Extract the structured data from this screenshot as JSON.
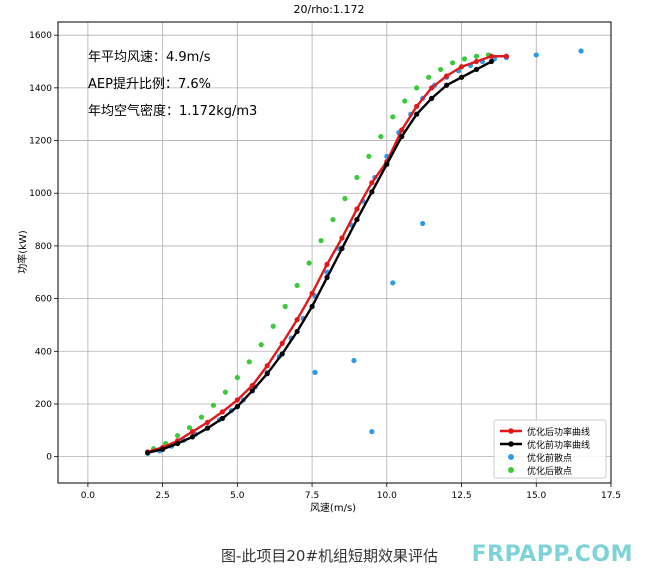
{
  "caption": "图-此项目20#机组短期效果评估",
  "watermark": "FRPAPP.COM",
  "chart_data": {
    "type": "line",
    "title": "20/rho:1.172",
    "xlabel": "风速(m/s)",
    "ylabel": "功率(kW)",
    "xlim": [
      -1.0,
      17.5
    ],
    "ylim": [
      -100,
      1650
    ],
    "xticks": [
      0.0,
      2.5,
      5.0,
      7.5,
      10.0,
      12.5,
      15.0,
      17.5
    ],
    "xtick_labels": [
      "0.0",
      "2.5",
      "5.0",
      "7.5",
      "10.0",
      "12.5",
      "15.0",
      "17.5"
    ],
    "yticks": [
      0,
      200,
      400,
      600,
      800,
      1000,
      1200,
      1400,
      1600
    ],
    "ytick_labels": [
      "0",
      "200",
      "400",
      "600",
      "800",
      "1000",
      "1200",
      "1400",
      "1600"
    ],
    "grid": true,
    "legend_position": "lower-right",
    "annotations": [
      "年平均风速：4.9m/s",
      "AEP提升比例：7.6%",
      "年均空气密度：1.172kg/m3"
    ],
    "series": [
      {
        "name": "优化后功率曲线",
        "kind": "line",
        "color": "#e0181c",
        "x": [
          2.0,
          2.5,
          3.0,
          3.5,
          4.0,
          4.5,
          5.0,
          5.5,
          6.0,
          6.5,
          7.0,
          7.5,
          8.0,
          8.5,
          9.0,
          9.5,
          10.0,
          10.5,
          11.0,
          11.5,
          12.0,
          12.5,
          13.0,
          13.5,
          14.0
        ],
        "values": [
          18,
          35,
          60,
          95,
          130,
          170,
          215,
          270,
          345,
          430,
          520,
          620,
          730,
          830,
          940,
          1040,
          1120,
          1240,
          1330,
          1400,
          1445,
          1480,
          1500,
          1520,
          1520
        ]
      },
      {
        "name": "优化前功率曲线",
        "kind": "line",
        "color": "#000000",
        "x": [
          2.0,
          2.5,
          3.0,
          3.5,
          4.0,
          4.5,
          5.0,
          5.5,
          6.0,
          6.5,
          7.0,
          7.5,
          8.0,
          8.5,
          9.0,
          9.5,
          10.0,
          10.5,
          11.0,
          11.5,
          12.0,
          12.5,
          13.0,
          13.5
        ],
        "values": [
          15,
          28,
          50,
          75,
          108,
          145,
          190,
          250,
          315,
          390,
          475,
          570,
          680,
          790,
          900,
          1005,
          1110,
          1215,
          1300,
          1360,
          1410,
          1440,
          1470,
          1500
        ]
      },
      {
        "name": "优化前散点",
        "kind": "scatter",
        "color": "#2f9be8",
        "x": [
          2.0,
          2.4,
          2.8,
          3.2,
          3.6,
          4.0,
          4.4,
          4.8,
          5.2,
          5.6,
          6.0,
          6.4,
          6.8,
          7.2,
          7.6,
          8.0,
          8.4,
          8.8,
          9.2,
          9.6,
          10.0,
          10.4,
          10.8,
          11.2,
          11.6,
          12.0,
          12.4,
          12.8,
          13.2,
          13.6,
          14.0,
          15.0,
          16.5,
          9.5,
          8.9,
          10.2,
          11.2,
          7.6
        ],
        "values": [
          12,
          22,
          40,
          62,
          85,
          110,
          140,
          175,
          215,
          265,
          320,
          380,
          450,
          525,
          610,
          700,
          790,
          880,
          970,
          1060,
          1140,
          1230,
          1300,
          1360,
          1410,
          1440,
          1465,
          1485,
          1500,
          1510,
          1515,
          1525,
          1540,
          95,
          365,
          660,
          885,
          320
        ]
      },
      {
        "name": "优化后散点",
        "kind": "scatter",
        "color": "#3cc93c",
        "x": [
          2.2,
          2.6,
          3.0,
          3.4,
          3.8,
          4.2,
          4.6,
          5.0,
          5.4,
          5.8,
          6.2,
          6.6,
          7.0,
          7.4,
          7.8,
          8.2,
          8.6,
          9.0,
          9.4,
          9.8,
          10.2,
          10.6,
          11.0,
          11.4,
          11.8,
          12.2,
          12.6,
          13.0,
          13.4
        ],
        "values": [
          30,
          50,
          80,
          110,
          150,
          195,
          245,
          300,
          360,
          425,
          495,
          570,
          650,
          735,
          820,
          900,
          980,
          1060,
          1140,
          1215,
          1290,
          1350,
          1400,
          1440,
          1470,
          1495,
          1510,
          1520,
          1525
        ]
      }
    ]
  }
}
